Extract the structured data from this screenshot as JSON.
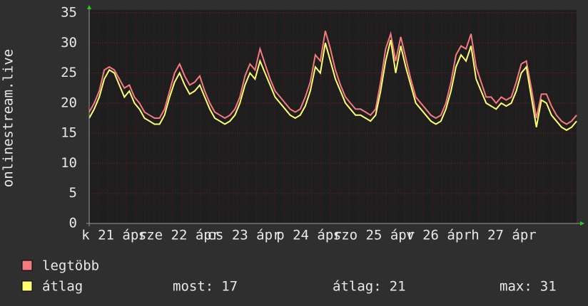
{
  "chart_data": {
    "type": "line",
    "y_axis_label": "onlinestream.live",
    "x_labels": [
      "k 21 ápr",
      "sze 22 ápr",
      "cs 23 ápr",
      "p 24 ápr",
      "szo 25 ápr",
      "v 26 ápr",
      "h 27 ápr"
    ],
    "ylim": [
      0,
      35
    ],
    "yticks": [
      0,
      5,
      10,
      15,
      20,
      25,
      30,
      35
    ],
    "grid": true,
    "series": [
      {
        "name": "legtöbb",
        "color": "#f47a80",
        "values": [
          18.5,
          20,
          22,
          25.5,
          26,
          25.5,
          24,
          22.5,
          23,
          21,
          20,
          18.5,
          18,
          17.5,
          17.5,
          19,
          22,
          25,
          26.5,
          24.5,
          23,
          23.5,
          24.5,
          22,
          20,
          18.5,
          18,
          17.5,
          18,
          19,
          21,
          24.5,
          26.5,
          25.5,
          29,
          26.5,
          24,
          22,
          21,
          20,
          19,
          18.5,
          19,
          21,
          23.5,
          28,
          27,
          32,
          29,
          25.5,
          23,
          21,
          20,
          19,
          19,
          18.5,
          18,
          19,
          23.5,
          29,
          31.5,
          27,
          31,
          27.5,
          24,
          21,
          20,
          19,
          18,
          17.5,
          18,
          20,
          23.5,
          28,
          29.5,
          29,
          31.5,
          26,
          23.5,
          21,
          21,
          20,
          21,
          20.5,
          21,
          23.5,
          26.5,
          27,
          22.5,
          17.5,
          21.5,
          21.5,
          19.5,
          18,
          17,
          16.5,
          17,
          18
        ]
      },
      {
        "name": "átlag",
        "color": "#ffff70",
        "values": [
          17.5,
          19,
          21,
          24,
          25.5,
          25,
          23,
          21,
          22,
          20,
          19,
          17.5,
          17,
          16.5,
          16.5,
          18,
          21,
          23.5,
          25,
          23,
          21.5,
          22,
          23,
          21,
          19,
          17.5,
          17,
          16.5,
          17,
          18,
          20,
          23,
          25,
          24,
          27,
          25,
          23,
          21,
          20,
          19,
          18,
          17.5,
          18,
          19.5,
          22,
          26,
          25,
          30,
          27,
          24,
          22,
          20,
          19,
          18,
          18,
          17.5,
          17,
          18,
          22,
          27,
          30.5,
          25,
          29.5,
          26,
          23,
          20,
          19,
          18,
          17,
          16.5,
          17,
          19,
          22,
          26,
          28,
          27,
          29.5,
          24,
          22,
          20,
          19.5,
          19,
          20,
          19.5,
          20,
          22,
          25,
          26,
          21,
          16,
          20.5,
          20,
          18,
          17,
          16,
          15.5,
          16,
          17
        ]
      }
    ],
    "stats": [
      {
        "label": "most:",
        "value": 17
      },
      {
        "label": "átlag:",
        "value": 21
      },
      {
        "label": "max:",
        "value": 31
      }
    ]
  }
}
